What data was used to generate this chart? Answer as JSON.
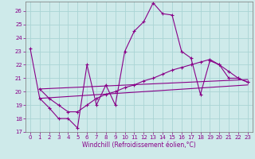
{
  "xlabel": "Windchill (Refroidissement éolien,°C)",
  "background_color": "#ceeaea",
  "grid_color": "#aad4d4",
  "line_color": "#880088",
  "xlim": [
    -0.5,
    23.5
  ],
  "ylim": [
    17,
    26.7
  ],
  "yticks": [
    17,
    18,
    19,
    20,
    21,
    22,
    23,
    24,
    25,
    26
  ],
  "xticks": [
    0,
    1,
    2,
    3,
    4,
    5,
    6,
    7,
    8,
    9,
    10,
    11,
    12,
    13,
    14,
    15,
    16,
    17,
    18,
    19,
    20,
    21,
    22,
    23
  ],
  "series1_x": [
    0,
    1,
    2,
    3,
    4,
    5,
    6,
    7,
    8,
    9,
    10,
    11,
    12,
    13,
    14,
    15,
    16,
    17,
    18,
    19,
    20,
    21,
    22,
    23
  ],
  "series1_y": [
    23.2,
    19.5,
    18.8,
    18.0,
    18.0,
    17.3,
    22.0,
    19.0,
    20.5,
    19.0,
    23.0,
    24.5,
    25.2,
    26.6,
    25.8,
    25.7,
    23.0,
    22.5,
    19.8,
    22.3,
    22.0,
    21.0,
    21.0,
    20.7
  ],
  "series2_x": [
    1,
    2,
    3,
    4,
    5,
    6,
    7,
    8,
    9,
    10,
    11,
    12,
    13,
    14,
    15,
    16,
    17,
    18,
    19,
    20,
    21,
    22,
    23
  ],
  "series2_y": [
    20.2,
    19.5,
    19.0,
    18.5,
    18.5,
    19.0,
    19.5,
    19.8,
    20.0,
    20.3,
    20.5,
    20.8,
    21.0,
    21.3,
    21.6,
    21.8,
    22.0,
    22.2,
    22.4,
    22.0,
    21.5,
    21.0,
    20.7
  ],
  "series3_x": [
    1,
    23
  ],
  "series3_y": [
    19.5,
    20.5
  ],
  "series4_x": [
    1,
    23
  ],
  "series4_y": [
    20.2,
    20.9
  ]
}
